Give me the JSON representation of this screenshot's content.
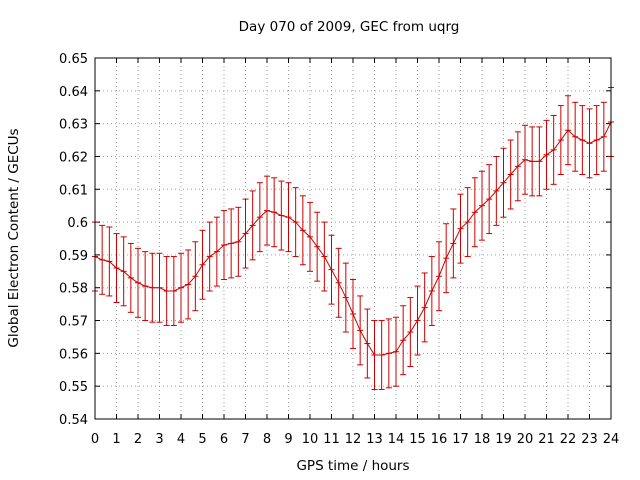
{
  "chart_data": {
    "type": "line",
    "title": "Day 070 of 2009, GEC from uqrg",
    "xlabel": "GPS time / hours",
    "ylabel": "Global Electron Content / GECUs",
    "xlim": [
      0,
      24
    ],
    "ylim": [
      0.54,
      0.65
    ],
    "x_ticks": [
      0,
      1,
      2,
      3,
      4,
      5,
      6,
      7,
      8,
      9,
      10,
      11,
      12,
      13,
      14,
      15,
      16,
      17,
      18,
      19,
      20,
      21,
      22,
      23,
      24
    ],
    "y_ticks": [
      0.54,
      0.55,
      0.56,
      0.57,
      0.58,
      0.59,
      0.6,
      0.61,
      0.62,
      0.63,
      0.64,
      0.65
    ],
    "y_tick_labels": [
      "0.54",
      "0.55",
      "0.56",
      "0.57",
      "0.58",
      "0.59",
      "0.6",
      "0.61",
      "0.62",
      "0.63",
      "0.64",
      "0.65"
    ],
    "grid": true,
    "line_color": "#cc0000",
    "series": [
      {
        "error": 0.0105,
        "x": [
          0,
          0.333,
          0.667,
          1,
          1.333,
          1.667,
          2,
          2.333,
          2.667,
          3,
          3.333,
          3.667,
          4,
          4.333,
          4.667,
          5,
          5.333,
          5.667,
          6,
          6.333,
          6.667,
          7,
          7.333,
          7.667,
          8,
          8.333,
          8.667,
          9,
          9.333,
          9.667,
          10,
          10.333,
          10.667,
          11,
          11.333,
          11.667,
          12,
          12.333,
          12.667,
          13,
          13.333,
          13.667,
          14,
          14.333,
          14.667,
          15,
          15.333,
          15.667,
          16,
          16.333,
          16.667,
          17,
          17.333,
          17.667,
          18,
          18.333,
          18.667,
          19,
          19.333,
          19.667,
          20,
          20.333,
          20.667,
          21,
          21.333,
          21.667,
          22,
          22.333,
          22.667,
          23,
          23.333,
          23.667,
          24
        ],
        "y": [
          0.5895,
          0.5885,
          0.588,
          0.586,
          0.585,
          0.583,
          0.5815,
          0.5805,
          0.58,
          0.58,
          0.579,
          0.579,
          0.58,
          0.581,
          0.5835,
          0.587,
          0.5895,
          0.591,
          0.593,
          0.5935,
          0.594,
          0.5965,
          0.599,
          0.6015,
          0.6035,
          0.603,
          0.602,
          0.6015,
          0.6,
          0.5975,
          0.5955,
          0.5925,
          0.5895,
          0.5855,
          0.5815,
          0.577,
          0.572,
          0.567,
          0.563,
          0.5595,
          0.5595,
          0.56,
          0.5605,
          0.564,
          0.5665,
          0.57,
          0.574,
          0.579,
          0.5835,
          0.589,
          0.5935,
          0.598,
          0.6,
          0.603,
          0.605,
          0.607,
          0.6095,
          0.612,
          0.6145,
          0.617,
          0.619,
          0.6185,
          0.6185,
          0.6205,
          0.622,
          0.625,
          0.628,
          0.626,
          0.625,
          0.624,
          0.625,
          0.626,
          0.6305
        ]
      }
    ]
  }
}
